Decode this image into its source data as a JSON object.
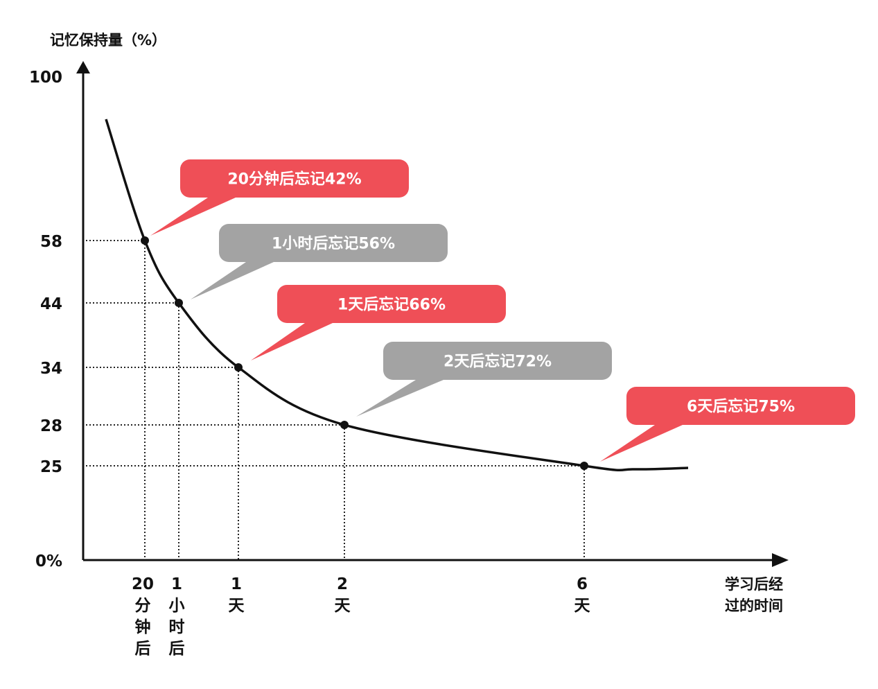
{
  "chart_data": {
    "type": "line",
    "ylabel": "记忆保持量（%）",
    "xlabel_lines": [
      "学习后经",
      "过的时间"
    ],
    "y_ticks": [
      {
        "value": 100,
        "label": "100"
      },
      {
        "value": 58,
        "label": "58"
      },
      {
        "value": 44,
        "label": "44"
      },
      {
        "value": 34,
        "label": "34"
      },
      {
        "value": 28,
        "label": "28"
      },
      {
        "value": 25,
        "label": "25"
      },
      {
        "value": 0,
        "label": "0%"
      }
    ],
    "points": [
      {
        "x_label": [
          "20",
          "分",
          "钟",
          "后"
        ],
        "y": 58,
        "callout": "20分钟后忘记42%",
        "color": "#ef4f57"
      },
      {
        "x_label": [
          "1",
          "小",
          "时",
          "后"
        ],
        "y": 44,
        "callout": "1小时后忘记56%",
        "color": "#a3a3a3"
      },
      {
        "x_label": [
          "1",
          "天"
        ],
        "y": 34,
        "callout": "1天后忘记66%",
        "color": "#ef4f57"
      },
      {
        "x_label": [
          "2",
          "天"
        ],
        "y": 28,
        "callout": "2天后忘记72%",
        "color": "#a3a3a3"
      },
      {
        "x_label": [
          "6",
          "天"
        ],
        "y": 25,
        "callout": "6天后忘记75%",
        "color": "#ef4f57"
      }
    ],
    "grid": "dotted guide lines to each point",
    "colors": {
      "axis": "#111111",
      "curve": "#111111",
      "red": "#ef4f57",
      "gray": "#a3a3a3"
    }
  }
}
